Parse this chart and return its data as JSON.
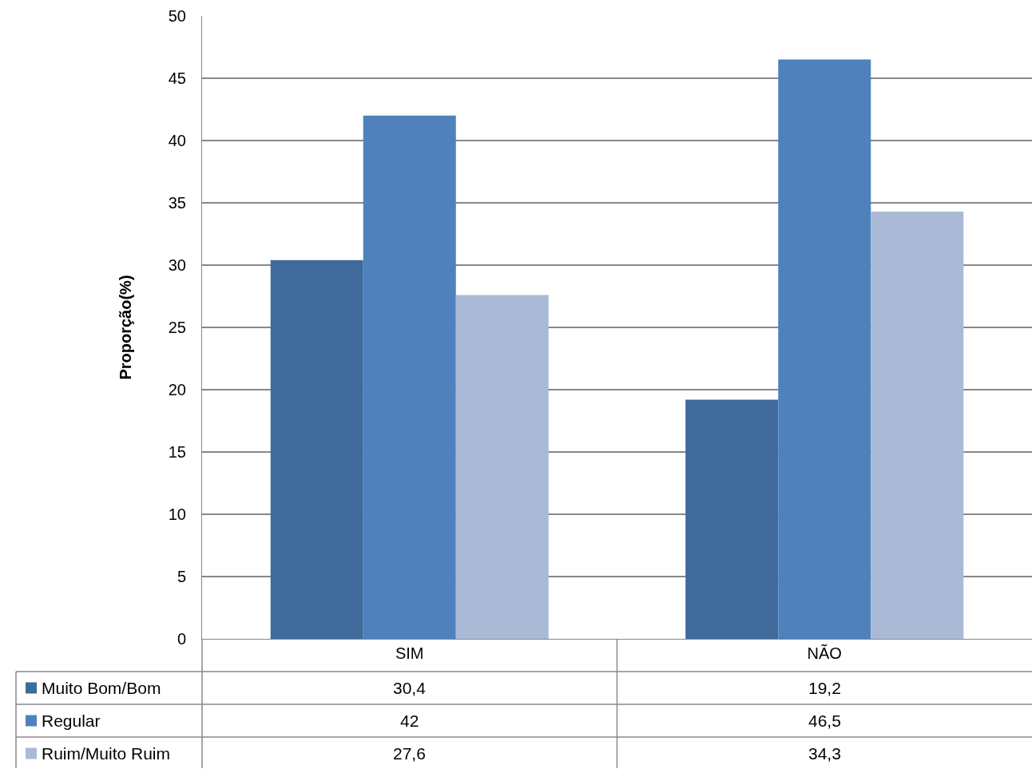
{
  "chart_data": {
    "type": "bar",
    "ylabel": "Proporção(%)",
    "categories": [
      "SIM",
      "NÃO"
    ],
    "series": [
      {
        "name": "Muito Bom/Bom",
        "color": "#3f6a9c",
        "values": [
          30.4,
          19.2
        ],
        "value_labels": [
          "30,4",
          "19,2"
        ]
      },
      {
        "name": "Regular",
        "color": "#4f81bd",
        "values": [
          42,
          46.5
        ],
        "value_labels": [
          "42",
          "46,5"
        ]
      },
      {
        "name": "Ruim/Muito Ruim",
        "color": "#aab9d6",
        "values": [
          27.6,
          34.3
        ],
        "value_labels": [
          "27,6",
          "34,3"
        ]
      }
    ],
    "ylim": [
      0,
      50
    ],
    "yticks": [
      0,
      5,
      10,
      15,
      20,
      25,
      30,
      35,
      40,
      45,
      50
    ],
    "grid": "y",
    "legend": "bottom"
  }
}
